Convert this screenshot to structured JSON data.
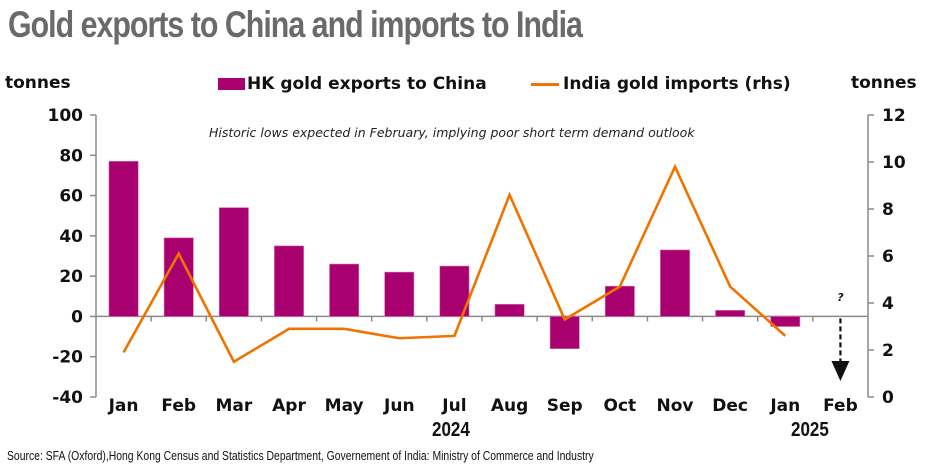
{
  "title": "Gold exports to China and imports to India",
  "left_unit": "tonnes",
  "right_unit": "tonnes",
  "annotation": "Historic lows expected in February, implying poor short term demand outlook",
  "feb_marker": "?",
  "source": "Source: SFA (Oxford),Hong Kong Census and Statistics Department, Governement of India: Ministry of Commerce and Industry",
  "chart_data": {
    "type": "bar",
    "title": "Gold exports to China and imports to India",
    "categories": [
      "Jan",
      "Feb",
      "Mar",
      "Apr",
      "May",
      "Jun",
      "Jul",
      "Aug",
      "Sep",
      "Oct",
      "Nov",
      "Dec",
      "Jan",
      "Feb"
    ],
    "year_labels": [
      {
        "label": "2024",
        "category_index": 6
      },
      {
        "label": "2025",
        "category_index": 12.5
      }
    ],
    "series": [
      {
        "name": "HK gold exports to China",
        "type": "bar",
        "axis": "left",
        "color": "#a8006e",
        "values": [
          77,
          39,
          54,
          35,
          26,
          22,
          25,
          6,
          -16,
          15,
          33,
          3,
          -5,
          null
        ]
      },
      {
        "name": "India gold imports (rhs)",
        "type": "line",
        "axis": "right",
        "color": "#f07300",
        "values": [
          1.9,
          6.1,
          1.5,
          2.9,
          2.9,
          2.5,
          2.6,
          8.6,
          3.3,
          4.7,
          9.8,
          4.7,
          2.6,
          null
        ]
      }
    ],
    "ylabel": "tonnes",
    "ylabel_right": "tonnes",
    "ylim": [
      -40,
      100
    ],
    "ylim_right": [
      0,
      12
    ],
    "yticks": [
      100,
      80,
      60,
      40,
      20,
      0,
      -20,
      -40
    ],
    "yticks_right": [
      12,
      10,
      8,
      6,
      4,
      2,
      0
    ],
    "legend_position": "top",
    "grid": false
  }
}
